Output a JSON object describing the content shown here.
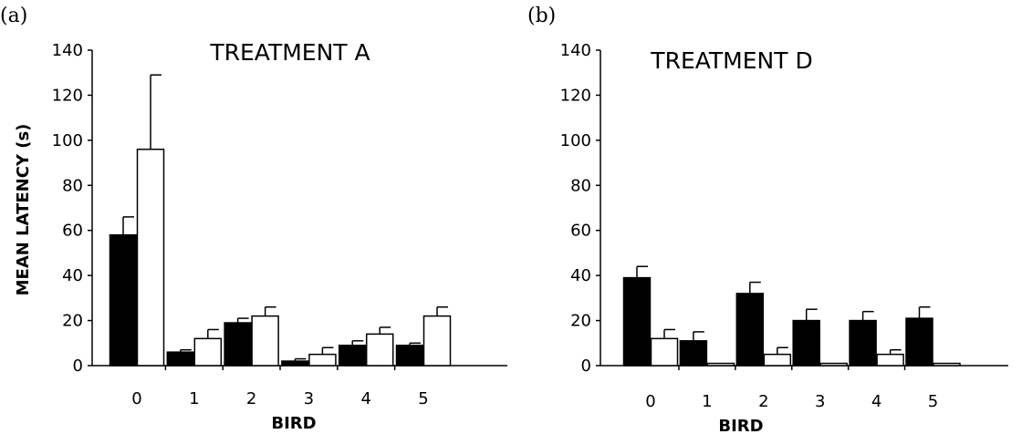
{
  "chart_data": [
    {
      "type": "bar",
      "panel_label": "(a)",
      "title": "TREATMENT A",
      "xlabel": "BIRD",
      "ylabel": "MEAN LATENCY (s)",
      "categories": [
        "0",
        "1",
        "2",
        "3",
        "4",
        "5"
      ],
      "ylim": [
        0,
        140
      ],
      "yticks": [
        "0",
        "20",
        "40",
        "60",
        "80",
        "100",
        "120",
        "140"
      ],
      "grid": false,
      "series": [
        {
          "color": "#000000",
          "values": [
            58,
            6,
            19,
            2,
            9,
            9
          ],
          "error": [
            8,
            1,
            2,
            1,
            2,
            1
          ]
        },
        {
          "color": "#ffffff",
          "values": [
            96,
            12,
            22,
            5,
            14,
            22
          ],
          "error": [
            33,
            4,
            4,
            3,
            3,
            4
          ]
        }
      ]
    },
    {
      "type": "bar",
      "panel_label": "(b)",
      "title": "TREATMENT D",
      "xlabel": "BIRD",
      "ylabel": "",
      "categories": [
        "0",
        "1",
        "2",
        "3",
        "4",
        "5"
      ],
      "ylim": [
        0,
        140
      ],
      "yticks": [
        "0",
        "20",
        "40",
        "60",
        "80",
        "100",
        "120",
        "140"
      ],
      "grid": false,
      "series": [
        {
          "color": "#000000",
          "values": [
            39,
            11,
            32,
            20,
            20,
            21
          ],
          "error": [
            5,
            4,
            5,
            5,
            4,
            5
          ]
        },
        {
          "color": "#ffffff",
          "values": [
            12,
            1,
            5,
            1,
            5,
            1
          ],
          "error": [
            4,
            0,
            3,
            0,
            2,
            0
          ]
        }
      ]
    }
  ]
}
